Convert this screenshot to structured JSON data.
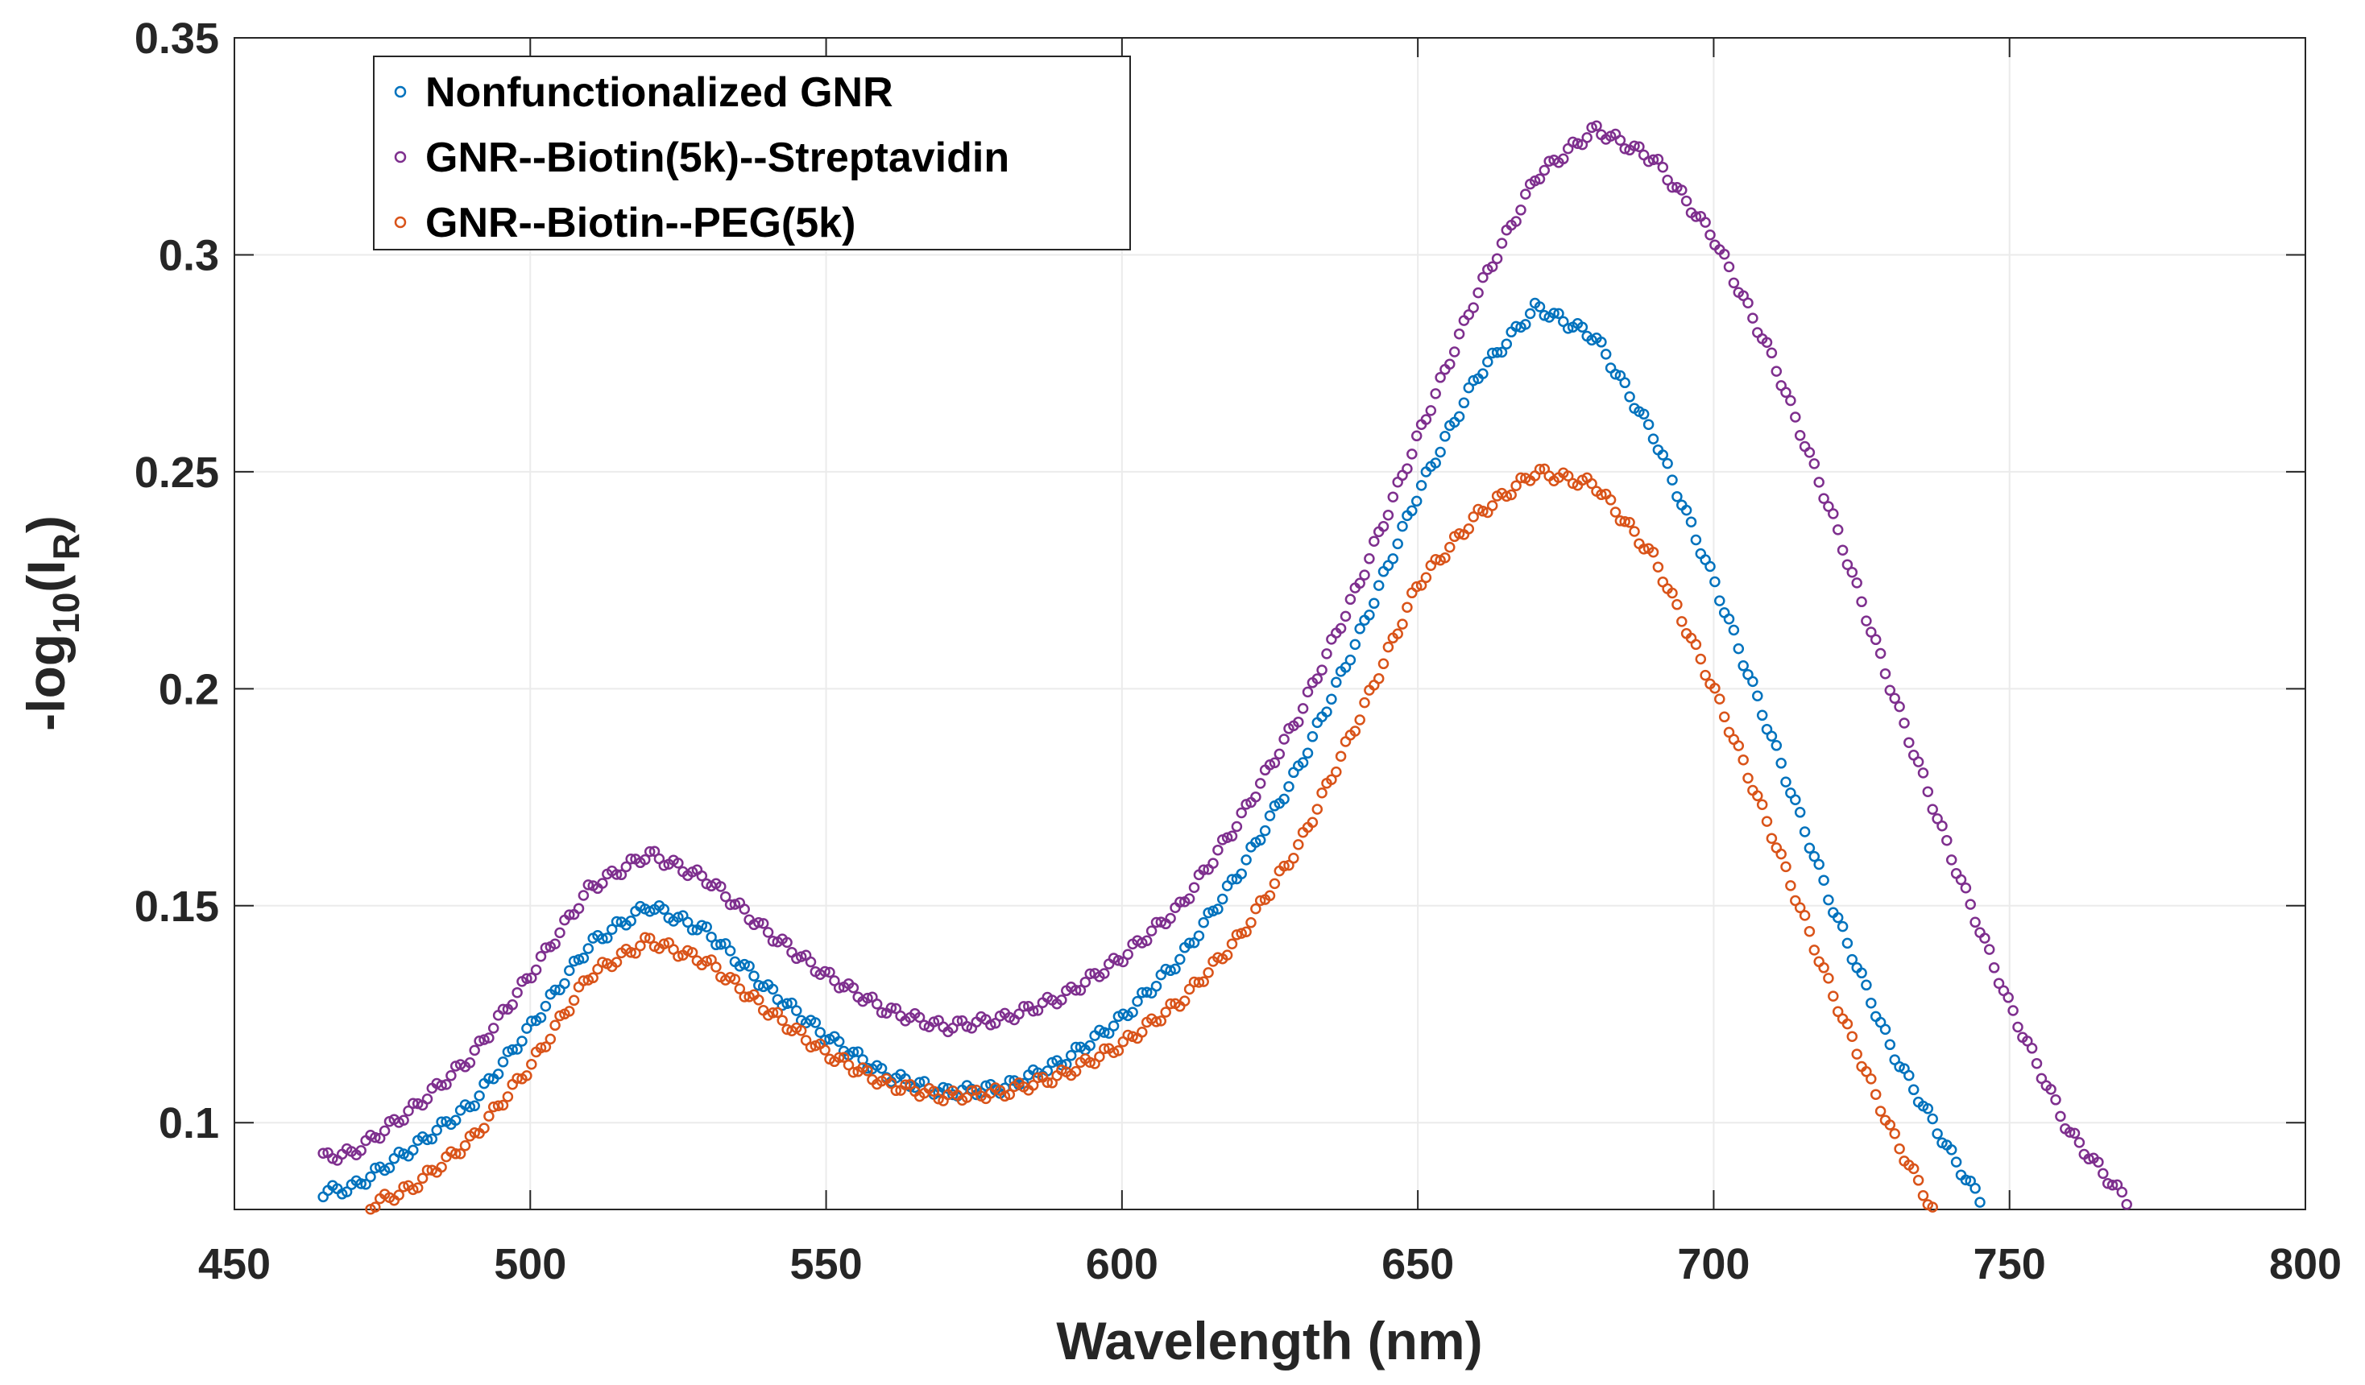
{
  "chart_data": {
    "type": "scatter",
    "title": "",
    "xlabel": "Wavelength (nm)",
    "ylabel": {
      "prefix": "-log",
      "sub1": "10",
      "mid": "(I",
      "sub2": "R",
      "suffix": ")"
    },
    "xlim": [
      450,
      800
    ],
    "ylim": [
      0.08,
      0.35
    ],
    "xticks": [
      450,
      500,
      550,
      600,
      650,
      700,
      750,
      800
    ],
    "yticks": [
      0.1,
      0.15,
      0.2,
      0.25,
      0.3,
      0.35
    ],
    "xtick_labels": [
      "450",
      "500",
      "550",
      "600",
      "650",
      "700",
      "750",
      "800"
    ],
    "ytick_labels": [
      "0.1",
      "0.15",
      "0.2",
      "0.25",
      "0.3",
      "0.35"
    ],
    "grid": true,
    "legend_position": "top-left",
    "series": [
      {
        "name": "Nonfunctionalized GNR",
        "color": "#0072BD",
        "x_range": [
          465,
          746
        ],
        "knots": [
          [
            465,
            0.084
          ],
          [
            470,
            0.085
          ],
          [
            480,
            0.094
          ],
          [
            490,
            0.104
          ],
          [
            500,
            0.122
          ],
          [
            510,
            0.141
          ],
          [
            520,
            0.15
          ],
          [
            530,
            0.144
          ],
          [
            540,
            0.131
          ],
          [
            550,
            0.12
          ],
          [
            560,
            0.111
          ],
          [
            570,
            0.107
          ],
          [
            580,
            0.108
          ],
          [
            590,
            0.114
          ],
          [
            600,
            0.124
          ],
          [
            610,
            0.138
          ],
          [
            620,
            0.158
          ],
          [
            630,
            0.182
          ],
          [
            640,
            0.212
          ],
          [
            650,
            0.245
          ],
          [
            660,
            0.272
          ],
          [
            670,
            0.288
          ],
          [
            680,
            0.281
          ],
          [
            690,
            0.258
          ],
          [
            700,
            0.225
          ],
          [
            710,
            0.188
          ],
          [
            720,
            0.15
          ],
          [
            730,
            0.117
          ],
          [
            740,
            0.093
          ],
          [
            746,
            0.08
          ]
        ]
      },
      {
        "name": "GNR--Biotin(5k)--Streptavidin",
        "color": "#7E2F8E",
        "x_range": [
          465,
          771
        ],
        "knots": [
          [
            465,
            0.092
          ],
          [
            470,
            0.093
          ],
          [
            480,
            0.103
          ],
          [
            490,
            0.115
          ],
          [
            500,
            0.134
          ],
          [
            510,
            0.154
          ],
          [
            520,
            0.162
          ],
          [
            530,
            0.156
          ],
          [
            540,
            0.144
          ],
          [
            550,
            0.134
          ],
          [
            560,
            0.126
          ],
          [
            570,
            0.122
          ],
          [
            580,
            0.124
          ],
          [
            590,
            0.129
          ],
          [
            600,
            0.138
          ],
          [
            610,
            0.15
          ],
          [
            620,
            0.17
          ],
          [
            630,
            0.194
          ],
          [
            640,
            0.224
          ],
          [
            650,
            0.258
          ],
          [
            660,
            0.291
          ],
          [
            670,
            0.318
          ],
          [
            680,
            0.329
          ],
          [
            690,
            0.322
          ],
          [
            700,
            0.304
          ],
          [
            710,
            0.276
          ],
          [
            720,
            0.24
          ],
          [
            730,
            0.2
          ],
          [
            740,
            0.162
          ],
          [
            750,
            0.127
          ],
          [
            760,
            0.098
          ],
          [
            771,
            0.08
          ]
        ]
      },
      {
        "name": "GNR--Biotin--PEG(5k)",
        "color": "#D95319",
        "x_range": [
          473,
          737
        ],
        "knots": [
          [
            473,
            0.081
          ],
          [
            480,
            0.085
          ],
          [
            490,
            0.096
          ],
          [
            500,
            0.113
          ],
          [
            510,
            0.134
          ],
          [
            520,
            0.142
          ],
          [
            530,
            0.137
          ],
          [
            540,
            0.126
          ],
          [
            550,
            0.116
          ],
          [
            560,
            0.109
          ],
          [
            570,
            0.106
          ],
          [
            580,
            0.107
          ],
          [
            590,
            0.111
          ],
          [
            600,
            0.118
          ],
          [
            610,
            0.128
          ],
          [
            620,
            0.143
          ],
          [
            630,
            0.164
          ],
          [
            640,
            0.193
          ],
          [
            650,
            0.224
          ],
          [
            660,
            0.24
          ],
          [
            670,
            0.25
          ],
          [
            680,
            0.247
          ],
          [
            690,
            0.23
          ],
          [
            700,
            0.2
          ],
          [
            710,
            0.166
          ],
          [
            720,
            0.13
          ],
          [
            730,
            0.098
          ],
          [
            737,
            0.08
          ]
        ]
      }
    ]
  }
}
